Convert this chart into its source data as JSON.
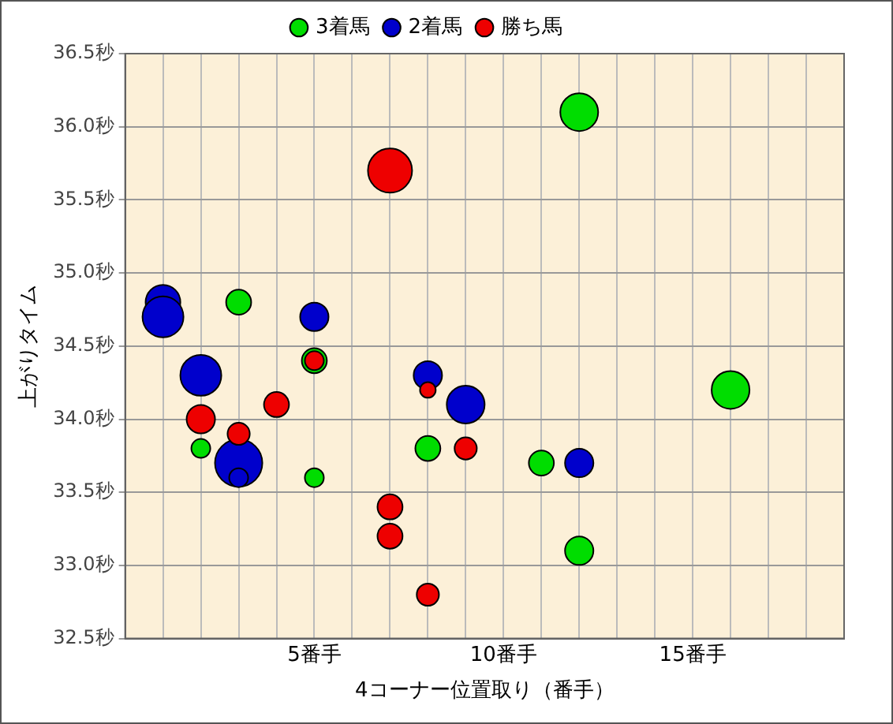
{
  "chart_data": {
    "type": "bubble",
    "xlabel": "4コーナー位置取り（番手）",
    "ylabel": "上がりタイム",
    "xlim": [
      0,
      19
    ],
    "xticks": [
      {
        "value": 0,
        "label": null
      },
      {
        "value": 1,
        "label": null
      },
      {
        "value": 2,
        "label": null
      },
      {
        "value": 3,
        "label": null
      },
      {
        "value": 4,
        "label": null
      },
      {
        "value": 5,
        "label": "5番手"
      },
      {
        "value": 6,
        "label": null
      },
      {
        "value": 7,
        "label": null
      },
      {
        "value": 8,
        "label": null
      },
      {
        "value": 9,
        "label": null
      },
      {
        "value": 10,
        "label": "10番手"
      },
      {
        "value": 11,
        "label": null
      },
      {
        "value": 12,
        "label": null
      },
      {
        "value": 13,
        "label": null
      },
      {
        "value": 14,
        "label": null
      },
      {
        "value": 15,
        "label": "15番手"
      },
      {
        "value": 16,
        "label": null
      },
      {
        "value": 17,
        "label": null
      },
      {
        "value": 18,
        "label": null
      },
      {
        "value": 19,
        "label": null
      }
    ],
    "ylim": [
      32.5,
      36.5
    ],
    "yticks": [
      {
        "value": 32.5,
        "label": "32.5秒"
      },
      {
        "value": 33,
        "label": "33.0秒"
      },
      {
        "value": 33.5,
        "label": "33.5秒"
      },
      {
        "value": 34,
        "label": "34.0秒"
      },
      {
        "value": 34.5,
        "label": "34.5秒"
      },
      {
        "value": 35,
        "label": "35.0秒"
      },
      {
        "value": 35.5,
        "label": "35.5秒"
      },
      {
        "value": 36,
        "label": "36.0秒"
      },
      {
        "value": 36.5,
        "label": "36.5秒"
      }
    ],
    "grid": true,
    "legend": "top",
    "marker": "circle",
    "series": [
      {
        "name": "3着馬",
        "color": "#00dd00",
        "x": [
          12,
          3,
          5,
          2,
          5,
          8,
          11,
          12,
          16
        ],
        "values": [
          36.1,
          34.8,
          34.4,
          33.8,
          33.6,
          33.8,
          33.7,
          33.1,
          34.2
        ],
        "sizes": [
          0.64,
          0.28,
          0.28,
          0.16,
          0.16,
          0.28,
          0.28,
          0.36,
          0.64
        ]
      },
      {
        "name": "2着馬",
        "color": "#0000cc",
        "x": [
          1,
          1,
          5,
          2,
          3,
          3,
          8,
          9,
          12
        ],
        "values": [
          34.8,
          34.7,
          34.7,
          34.3,
          33.7,
          33.6,
          34.3,
          34.1,
          33.7
        ],
        "sizes": [
          0.54,
          0.75,
          0.36,
          0.75,
          1,
          0.16,
          0.36,
          0.64,
          0.36
        ]
      },
      {
        "name": "勝ち馬",
        "color": "#ee0000",
        "x": [
          7,
          5,
          2,
          3,
          4,
          8,
          7,
          7,
          9,
          8
        ],
        "values": [
          35.7,
          34.4,
          34,
          33.9,
          34.1,
          34.2,
          33.4,
          33.2,
          33.8,
          32.8
        ],
        "sizes": [
          0.87,
          0.16,
          0.36,
          0.22,
          0.28,
          0.11,
          0.28,
          0.28,
          0.22,
          0.22
        ]
      }
    ]
  }
}
